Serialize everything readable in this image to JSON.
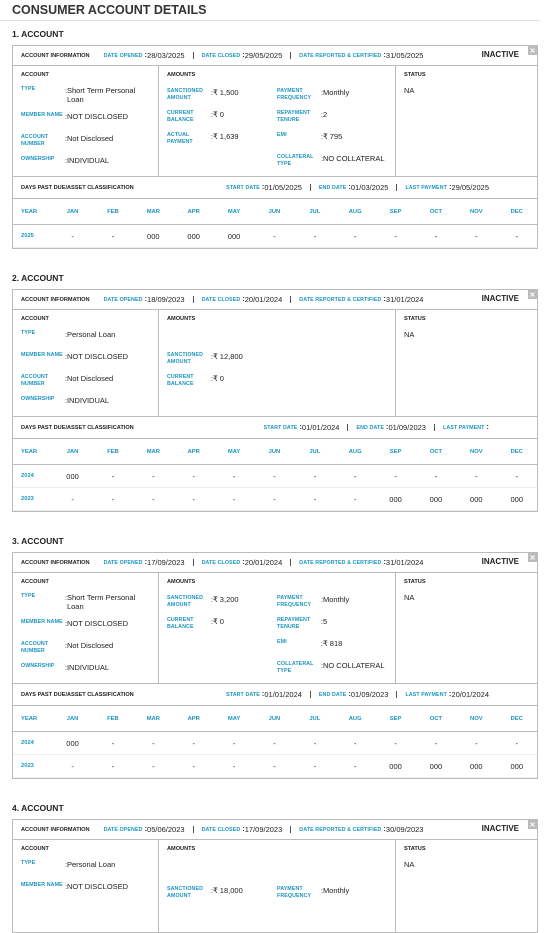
{
  "title": "CONSUMER ACCOUNT DETAILS",
  "labels": {
    "account_information": "ACCOUNT INFORMATION",
    "date_opened": "DATE OPENED",
    "date_closed": "DATE CLOSED",
    "date_reported": "DATE REPORTED & CERTIFIED",
    "account": "ACCOUNT",
    "amounts": "AMOUNTS",
    "status": "STATUS",
    "dpd": "DAYS PAST DUE/ASSET CLASSIFICATION",
    "start_date": "START DATE",
    "end_date": "END DATE",
    "last_payment": "LAST PAYMENT",
    "year": "YEAR",
    "months": [
      "JAN",
      "FEB",
      "MAR",
      "APR",
      "MAY",
      "JUN",
      "JUL",
      "AUG",
      "SEP",
      "OCT",
      "NOV",
      "DEC"
    ]
  },
  "accounts": [
    {
      "heading": "1. ACCOUNT",
      "date_opened": "28/03/2025",
      "date_closed": "29/05/2025",
      "date_reported": "31/05/2025",
      "badge": "INACTIVE",
      "account_fields": [
        {
          "label": "TYPE",
          "value": "Short Term Personal Loan"
        },
        {
          "label": "MEMBER NAME",
          "value": "NOT DISCLOSED"
        },
        {
          "label": "ACCOUNT NUMBER",
          "value": "Not Disclosed"
        },
        {
          "label": "OWNERSHIP",
          "value": "INDIVIDUAL"
        }
      ],
      "amount_fields": [
        {
          "label": "SANCTIONED AMOUNT",
          "value": "₹ 1,500"
        },
        {
          "label": "CURRENT BALANCE",
          "value": "₹ 0"
        },
        {
          "label": "ACTUAL PAYMENT",
          "value": "₹ 1,639"
        }
      ],
      "payment_fields": [
        {
          "label": "PAYMENT FREQUENCY",
          "value": "Monthly"
        },
        {
          "label": "REPAYMENT TENURE",
          "value": "2"
        },
        {
          "label": "EMI",
          "value": "₹ 795"
        },
        {
          "label": "COLLATERAL TYPE",
          "value": "NO COLLATERAL"
        }
      ],
      "status": "NA",
      "start_date": "01/05/2025",
      "end_date": "01/03/2025",
      "last_payment": "29/05/2025",
      "years": [
        {
          "year": "2025",
          "values": [
            "-",
            "-",
            "000",
            "000",
            "000",
            "-",
            "-",
            "-",
            "-",
            "-",
            "-",
            "-"
          ]
        }
      ]
    },
    {
      "heading": "2. ACCOUNT",
      "date_opened": "18/09/2023",
      "date_closed": "20/01/2024",
      "date_reported": "31/01/2024",
      "badge": "INACTIVE",
      "account_fields": [
        {
          "label": "TYPE",
          "value": "Personal Loan"
        },
        {
          "label": "MEMBER NAME",
          "value": "NOT DISCLOSED"
        },
        {
          "label": "ACCOUNT NUMBER",
          "value": "Not Disclosed"
        },
        {
          "label": "OWNERSHIP",
          "value": "INDIVIDUAL"
        }
      ],
      "amount_fields": [
        {
          "label": "SANCTIONED AMOUNT",
          "value": "₹ 12,800"
        },
        {
          "label": "CURRENT BALANCE",
          "value": "₹ 0"
        }
      ],
      "status": "NA",
      "start_date": "01/01/2024",
      "end_date": "01/09/2023",
      "years": [
        {
          "year": "2024",
          "values": [
            "000",
            "-",
            "-",
            "-",
            "-",
            "-",
            "-",
            "-",
            "-",
            "-",
            "-",
            "-"
          ]
        },
        {
          "year": "2023",
          "values": [
            "-",
            "-",
            "-",
            "-",
            "-",
            "-",
            "-",
            "-",
            "000",
            "000",
            "000",
            "000"
          ]
        }
      ]
    },
    {
      "heading": "3. ACCOUNT",
      "date_opened": "17/09/2023",
      "date_closed": "20/01/2024",
      "date_reported": "31/01/2024",
      "badge": "INACTIVE",
      "account_fields": [
        {
          "label": "TYPE",
          "value": "Short Term Personal Loan"
        },
        {
          "label": "MEMBER NAME",
          "value": "NOT DISCLOSED"
        },
        {
          "label": "ACCOUNT NUMBER",
          "value": "Not Disclosed"
        },
        {
          "label": "OWNERSHIP",
          "value": "INDIVIDUAL"
        }
      ],
      "amount_fields": [
        {
          "label": "SANCTIONED AMOUNT",
          "value": "₹ 3,200"
        },
        {
          "label": "CURRENT BALANCE",
          "value": "₹ 0"
        }
      ],
      "payment_fields": [
        {
          "label": "PAYMENT FREQUENCY",
          "value": "Monthly"
        },
        {
          "label": "REPAYMENT TENURE",
          "value": "5"
        },
        {
          "label": "EMI",
          "value": "₹ 818"
        },
        {
          "label": "COLLATERAL TYPE",
          "value": "NO COLLATERAL"
        }
      ],
      "status": "NA",
      "start_date": "01/01/2024",
      "end_date": "01/09/2023",
      "last_payment": "20/01/2024",
      "years": [
        {
          "year": "2024",
          "values": [
            "000",
            "-",
            "-",
            "-",
            "-",
            "-",
            "-",
            "-",
            "-",
            "-",
            "-",
            "-"
          ]
        },
        {
          "year": "2023",
          "values": [
            "-",
            "-",
            "-",
            "-",
            "-",
            "-",
            "-",
            "-",
            "000",
            "000",
            "000",
            "000"
          ]
        }
      ]
    },
    {
      "heading": "4. ACCOUNT",
      "date_opened": "05/06/2023",
      "date_closed": "17/09/2023",
      "date_reported": "30/09/2023",
      "badge": "INACTIVE",
      "account_fields": [
        {
          "label": "TYPE",
          "value": "Personal Loan"
        },
        {
          "label": "MEMBER NAME",
          "value": "NOT DISCLOSED"
        }
      ],
      "amount_fields": [
        {
          "label": "SANCTIONED AMOUNT",
          "value": "₹ 18,000"
        }
      ],
      "payment_fields": [
        {
          "label": "PAYMENT FREQUENCY",
          "value": "Monthly"
        }
      ],
      "status": "NA"
    }
  ]
}
